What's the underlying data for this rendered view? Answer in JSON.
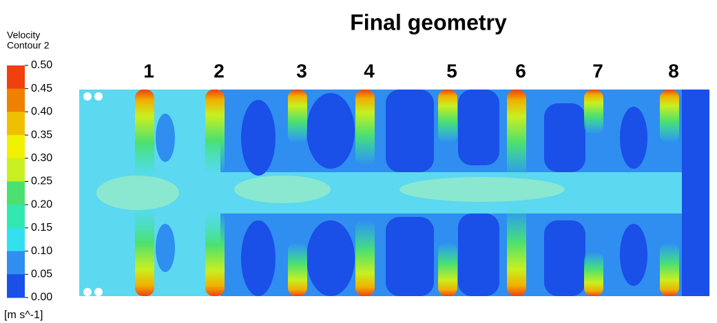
{
  "title": "Final geometry",
  "legend": {
    "title": [
      "Velocity",
      "Contour 2"
    ],
    "ticks": [
      "0.50",
      "0.45",
      "0.40",
      "0.35",
      "0.30",
      "0.25",
      "0.20",
      "0.15",
      "0.10",
      "0.05",
      "0.00"
    ],
    "unit": "[m s^-1]"
  },
  "jets": [
    "1",
    "2",
    "3",
    "4",
    "5",
    "6",
    "7",
    "8"
  ]
}
